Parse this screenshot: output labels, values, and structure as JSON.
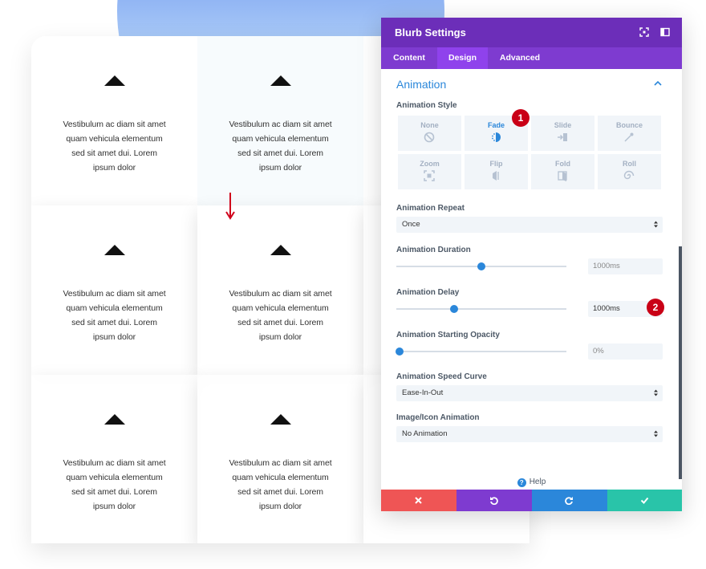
{
  "panel": {
    "title": "Blurb Settings",
    "tabs": [
      {
        "label": "Content"
      },
      {
        "label": "Design"
      },
      {
        "label": "Advanced"
      }
    ],
    "section_title": "Animation",
    "animation_style": {
      "label": "Animation Style",
      "options": [
        {
          "name": "None",
          "icon": "none-icon"
        },
        {
          "name": "Fade",
          "icon": "fade-icon"
        },
        {
          "name": "Slide",
          "icon": "slide-icon"
        },
        {
          "name": "Bounce",
          "icon": "bounce-icon"
        },
        {
          "name": "Zoom",
          "icon": "zoom-icon"
        },
        {
          "name": "Flip",
          "icon": "flip-icon"
        },
        {
          "name": "Fold",
          "icon": "fold-icon"
        },
        {
          "name": "Roll",
          "icon": "roll-icon"
        }
      ],
      "selected": "Fade"
    },
    "animation_repeat": {
      "label": "Animation Repeat",
      "value": "Once"
    },
    "animation_duration": {
      "label": "Animation Duration",
      "value": "1000ms",
      "slider": 0.5
    },
    "animation_delay": {
      "label": "Animation Delay",
      "value": "1000ms",
      "slider": 0.34
    },
    "animation_starting_opacity": {
      "label": "Animation Starting Opacity",
      "value": "0%",
      "slider": 0.0
    },
    "animation_speed_curve": {
      "label": "Animation Speed Curve",
      "value": "Ease-In-Out"
    },
    "image_icon_animation": {
      "label": "Image/Icon Animation",
      "value": "No Animation"
    },
    "help": "Help",
    "badges": [
      "1",
      "2"
    ],
    "colors": {
      "header": "#6c2eb9",
      "tabs": "#7e3bd0",
      "accent": "#2b87da",
      "cancel": "#ef5555",
      "undo": "#7e3bd0",
      "redo": "#2b87da",
      "save": "#29c4a9",
      "badge": "#c90016"
    }
  },
  "blurb": {
    "text_lines": [
      "Vestibulum ac diam sit amet",
      "quam vehicula elementum",
      "sed sit amet dui. Lorem",
      "ipsum dolor"
    ],
    "icon": "triangle-up-icon"
  }
}
